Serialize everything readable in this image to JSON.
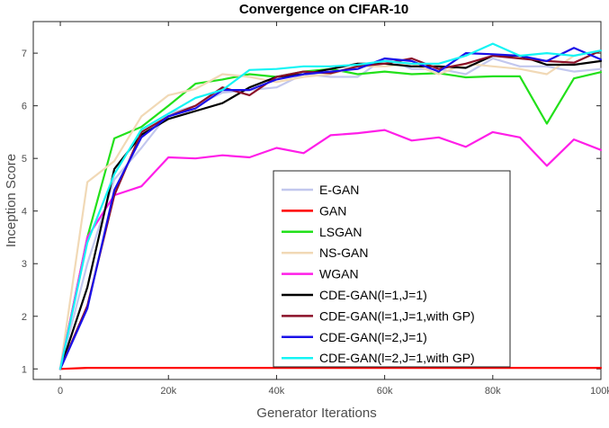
{
  "chart_data": {
    "type": "line",
    "title": "Convergence on CIFAR-10",
    "xlabel": "Generator Iterations",
    "ylabel": "Inception Score",
    "xlim": [
      -5000,
      100000
    ],
    "ylim": [
      0.8,
      7.6
    ],
    "xticks": [
      0,
      20000,
      40000,
      60000,
      80000,
      100000
    ],
    "xtick_labels": [
      "0",
      "20k",
      "40k",
      "60k",
      "80k",
      "100k"
    ],
    "yticks": [
      1,
      2,
      3,
      4,
      5,
      6,
      7
    ],
    "ytick_labels": [
      "1",
      "2",
      "3",
      "4",
      "5",
      "6",
      "7"
    ],
    "grid": false,
    "legend_position": "lower-right",
    "x": [
      0,
      5000,
      10000,
      15000,
      20000,
      25000,
      30000,
      35000,
      40000,
      45000,
      50000,
      55000,
      60000,
      65000,
      70000,
      75000,
      80000,
      85000,
      90000,
      95000,
      100000
    ],
    "series": [
      {
        "name": "E-GAN",
        "color": "#c2c7ee",
        "values": [
          1.0,
          3.0,
          4.6,
          5.2,
          5.85,
          6.0,
          6.25,
          6.3,
          6.35,
          6.6,
          6.55,
          6.55,
          6.9,
          6.7,
          6.7,
          6.6,
          6.9,
          6.75,
          6.75,
          6.65,
          6.7
        ]
      },
      {
        "name": "GAN",
        "color": "#ff0000",
        "values": [
          1.0,
          1.02,
          1.02,
          1.02,
          1.02,
          1.02,
          1.02,
          1.02,
          1.02,
          1.02,
          1.02,
          1.02,
          1.02,
          1.02,
          1.02,
          1.02,
          1.02,
          1.02,
          1.02,
          1.02,
          1.02
        ]
      },
      {
        "name": "LSGAN",
        "color": "#22e01a",
        "values": [
          1.0,
          3.5,
          5.38,
          5.6,
          6.0,
          6.42,
          6.5,
          6.6,
          6.55,
          6.65,
          6.7,
          6.6,
          6.65,
          6.6,
          6.62,
          6.54,
          6.56,
          6.56,
          5.66,
          6.52,
          6.64
        ]
      },
      {
        "name": "NS-GAN",
        "color": "#f1d9b6",
        "values": [
          1.0,
          4.55,
          4.95,
          5.8,
          6.2,
          6.32,
          6.6,
          6.55,
          6.45,
          6.55,
          6.6,
          6.75,
          6.75,
          6.8,
          6.6,
          6.8,
          6.75,
          6.7,
          6.6,
          6.95,
          7.05
        ]
      },
      {
        "name": "WGAN",
        "color": "#ff1ee8",
        "values": [
          1.0,
          3.5,
          4.3,
          4.47,
          5.02,
          5.0,
          5.06,
          5.02,
          5.2,
          5.1,
          5.44,
          5.48,
          5.54,
          5.34,
          5.4,
          5.22,
          5.5,
          5.4,
          4.86,
          5.36,
          5.16
        ]
      },
      {
        "name": "CDE-GAN(l=1,J=1)",
        "color": "#000000",
        "values": [
          1.0,
          2.55,
          4.8,
          5.45,
          5.75,
          5.9,
          6.05,
          6.35,
          6.55,
          6.6,
          6.7,
          6.8,
          6.8,
          6.75,
          6.75,
          6.72,
          6.95,
          6.95,
          6.78,
          6.78,
          6.85
        ]
      },
      {
        "name": "CDE-GAN(l=1,J=1,with GP)",
        "color": "#8b1028",
        "values": [
          1.0,
          2.2,
          4.3,
          5.5,
          5.8,
          6.0,
          6.35,
          6.2,
          6.55,
          6.65,
          6.62,
          6.75,
          6.8,
          6.9,
          6.7,
          6.8,
          6.95,
          6.9,
          6.85,
          6.82,
          7.05
        ]
      },
      {
        "name": "CDE-GAN(l=2,J=1)",
        "color": "#1a10e8",
        "values": [
          1.0,
          2.15,
          4.4,
          5.4,
          5.8,
          5.95,
          6.3,
          6.3,
          6.5,
          6.6,
          6.65,
          6.7,
          6.9,
          6.85,
          6.65,
          7.0,
          6.98,
          6.95,
          6.85,
          7.1,
          6.88
        ]
      },
      {
        "name": "CDE-GAN(l=2,J=1,with GP)",
        "color": "#15f4f4",
        "values": [
          1.0,
          3.4,
          4.7,
          5.55,
          5.85,
          6.15,
          6.3,
          6.68,
          6.7,
          6.75,
          6.75,
          6.78,
          6.85,
          6.8,
          6.8,
          6.95,
          7.18,
          6.95,
          7.0,
          6.95,
          7.05
        ]
      }
    ]
  }
}
